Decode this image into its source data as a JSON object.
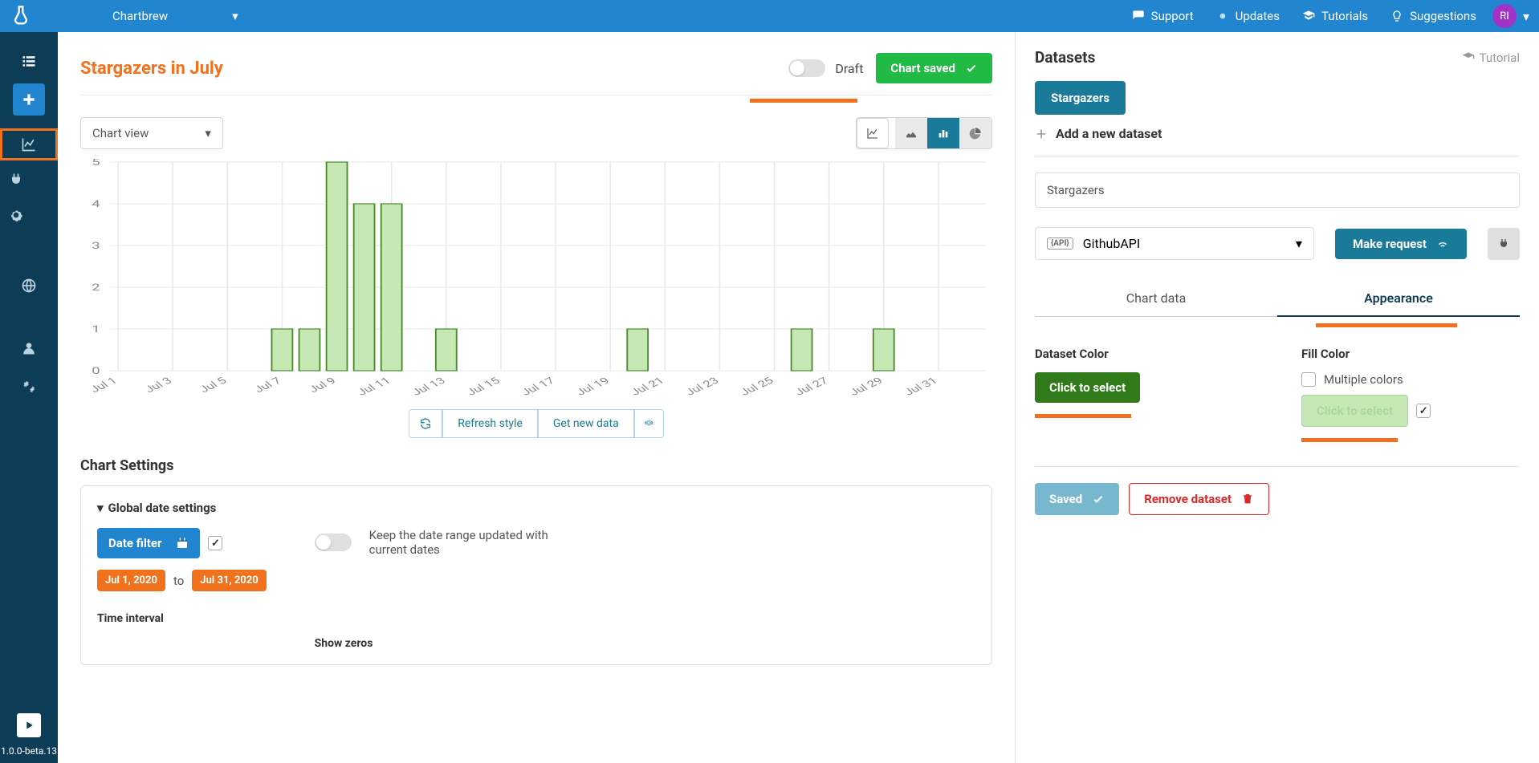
{
  "topbar": {
    "project_name": "Chartbrew",
    "links": {
      "support": "Support",
      "updates": "Updates",
      "tutorials": "Tutorials",
      "suggestions": "Suggestions"
    },
    "avatar_initials": "RI"
  },
  "sidebar": {
    "version": "1.0.0-beta.13"
  },
  "left": {
    "page_title": "Stargazers in July",
    "draft_label": "Draft",
    "chart_saved_label": "Chart saved",
    "chart_view_label": "Chart view",
    "refresh_btn": "Refresh style",
    "get_data_btn": "Get new data",
    "settings_title": "Chart Settings",
    "global_date_title": "Global date settings",
    "date_filter_btn": "Date filter",
    "date_from": "Jul 1, 2020",
    "date_to_word": "to",
    "date_to": "Jul 31, 2020",
    "keep_updated_label": "Keep the date range updated with current dates",
    "time_interval_label": "Time interval",
    "show_zeros_label": "Show zeros",
    "chart": {
      "type": "bar",
      "categories": [
        "Jul 1",
        "Jul 3",
        "Jul 5",
        "Jul 7",
        "Jul 9",
        "Jul 11",
        "Jul 13",
        "Jul 15",
        "Jul 17",
        "Jul 19",
        "Jul 21",
        "Jul 23",
        "Jul 25",
        "Jul 27",
        "Jul 29",
        "Jul 31"
      ],
      "bars": [
        {
          "x_index": 3.0,
          "value": 1
        },
        {
          "x_index": 3.5,
          "value": 1
        },
        {
          "x_index": 4.0,
          "value": 5
        },
        {
          "x_index": 4.5,
          "value": 4
        },
        {
          "x_index": 5.0,
          "value": 4
        },
        {
          "x_index": 6.0,
          "value": 1
        },
        {
          "x_index": 9.5,
          "value": 1
        },
        {
          "x_index": 12.5,
          "value": 1
        },
        {
          "x_index": 14.0,
          "value": 1
        }
      ],
      "y_ticks": [
        0,
        1,
        2,
        3,
        4,
        5
      ],
      "ylim": [
        0,
        5
      ],
      "bar_fill": "#c6e8b5",
      "bar_stroke": "#4a8a2a",
      "grid_color": "#e9e9e9",
      "axis_text_color": "#888888",
      "bar_width_ratio": 0.38
    }
  },
  "right": {
    "datasets_heading": "Datasets",
    "tutorial_label": "Tutorial",
    "dataset_badge": "Stargazers",
    "add_dataset_label": "Add a new dataset",
    "dataset_name_value": "Stargazers",
    "api_name": "GithubAPI",
    "make_request_btn": "Make request",
    "tab_chart_data": "Chart data",
    "tab_appearance": "Appearance",
    "dataset_color_label": "Dataset Color",
    "dataset_color_btn": "Click to select",
    "dataset_color_value": "#317a1a",
    "fill_color_label": "Fill Color",
    "multiple_colors_label": "Multiple colors",
    "fill_color_btn": "Click to select",
    "fill_color_value": "#c6e8b5",
    "saved_btn": "Saved",
    "remove_btn": "Remove dataset"
  }
}
